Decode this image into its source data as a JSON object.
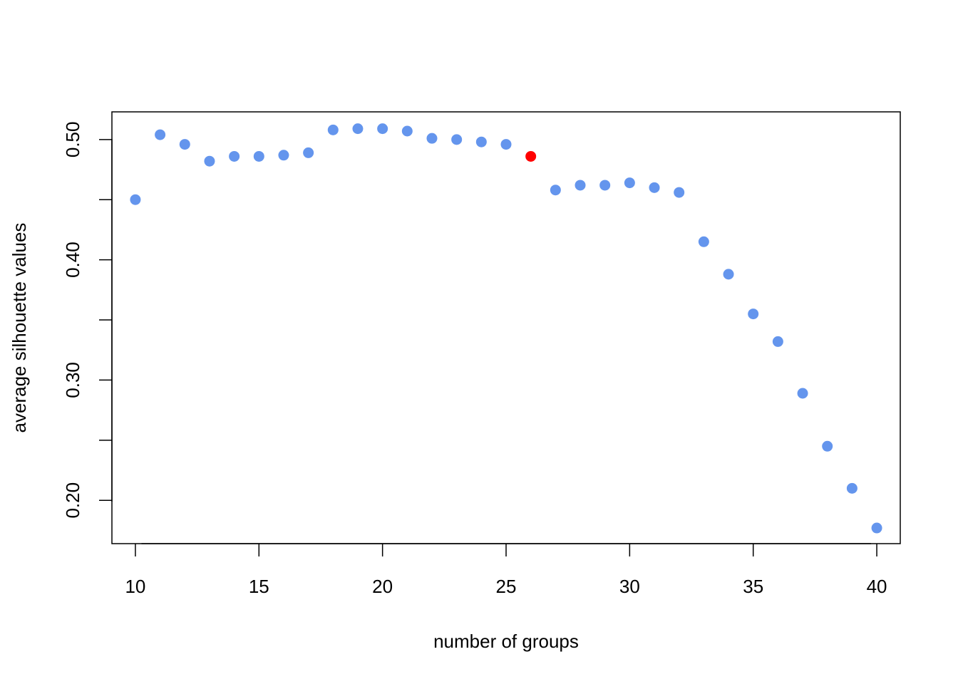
{
  "chart_data": {
    "type": "scatter",
    "title": "",
    "xlabel": "number of groups",
    "ylabel": "average silhouette values",
    "xlim": [
      9.05,
      40.95
    ],
    "ylim": [
      0.164,
      0.523
    ],
    "x_ticks": [
      10,
      15,
      20,
      25,
      30,
      35,
      40
    ],
    "x_tick_labels": [
      "10",
      "15",
      "20",
      "25",
      "30",
      "35",
      "40"
    ],
    "y_ticks": [
      0.2,
      0.25,
      0.3,
      0.35,
      0.4,
      0.45,
      0.5
    ],
    "y_tick_labels": [
      "0.20",
      "",
      "0.30",
      "",
      "0.40",
      "",
      "0.50"
    ],
    "grid": false,
    "legend": "none",
    "colors": {
      "point": "#6495ED",
      "highlight": "#FF0000",
      "axis": "#000000"
    },
    "highlight_x": 26,
    "x": [
      10,
      11,
      12,
      13,
      14,
      15,
      16,
      17,
      18,
      19,
      20,
      21,
      22,
      23,
      24,
      25,
      26,
      27,
      28,
      29,
      30,
      31,
      32,
      33,
      34,
      35,
      36,
      37,
      38,
      39,
      40
    ],
    "y": [
      0.45,
      0.504,
      0.496,
      0.482,
      0.486,
      0.486,
      0.487,
      0.489,
      0.508,
      0.509,
      0.509,
      0.507,
      0.501,
      0.5,
      0.498,
      0.496,
      0.486,
      0.458,
      0.462,
      0.462,
      0.464,
      0.46,
      0.456,
      0.415,
      0.388,
      0.355,
      0.332,
      0.289,
      0.245,
      0.21,
      0.177
    ]
  }
}
